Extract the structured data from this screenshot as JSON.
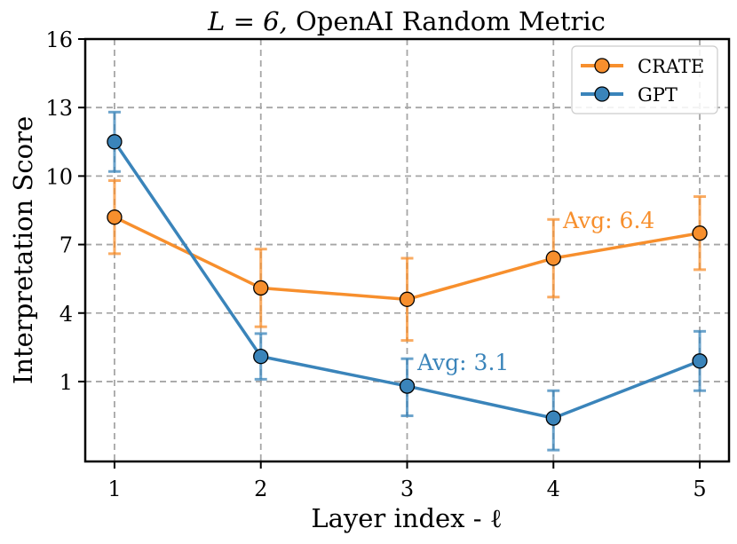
{
  "chart_data": {
    "type": "line",
    "title_prefix": "L = 6,",
    "title_suffix": " OpenAI Random Metric",
    "xlabel": "Layer index - ℓ",
    "ylabel": "Interpretation Score",
    "x": [
      1,
      2,
      3,
      4,
      5
    ],
    "x_ticks": [
      "1",
      "2",
      "3",
      "4",
      "5"
    ],
    "xlim": [
      0.8,
      5.2
    ],
    "y_ticks": [
      1,
      4,
      7,
      10,
      13,
      16
    ],
    "y_tick_labels": [
      "1",
      "4",
      "7",
      "10",
      "13",
      "16"
    ],
    "ylim": [
      -2.5,
      16
    ],
    "grid": true,
    "legend_position": "top-right",
    "series": [
      {
        "name": "CRATE",
        "color": "#F78F2D",
        "values": [
          8.2,
          5.1,
          4.6,
          6.4,
          7.5
        ],
        "err_low": [
          6.6,
          3.4,
          2.8,
          4.7,
          5.9
        ],
        "err_high": [
          9.8,
          6.8,
          6.4,
          8.1,
          9.1
        ],
        "annotation": "Avg: 6.4"
      },
      {
        "name": "GPT",
        "color": "#3A84BA",
        "values": [
          11.5,
          2.1,
          0.8,
          -0.6,
          1.9
        ],
        "err_low": [
          10.2,
          1.1,
          -0.5,
          -2.0,
          0.6
        ],
        "err_high": [
          12.8,
          3.1,
          2.0,
          0.6,
          3.2
        ],
        "annotation": "Avg: 3.1"
      }
    ]
  }
}
